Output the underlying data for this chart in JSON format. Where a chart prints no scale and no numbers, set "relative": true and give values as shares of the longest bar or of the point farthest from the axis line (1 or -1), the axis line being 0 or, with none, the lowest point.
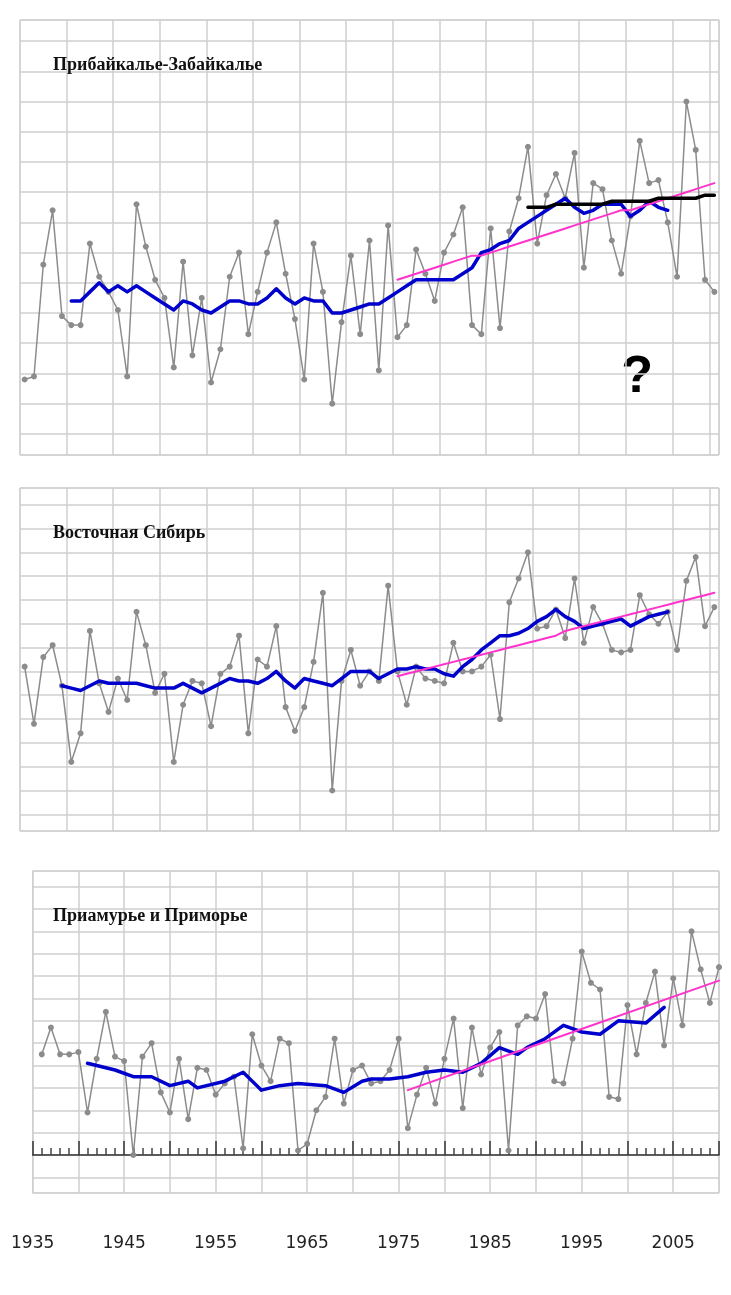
{
  "chart_data": [
    {
      "type": "line",
      "title": "Прибайкалье-Забайкалье",
      "relative": true,
      "grid": true,
      "tick_labels": false,
      "marker": "circle",
      "annotations": [
        "?"
      ],
      "categories": [
        null,
        null,
        null,
        null,
        null,
        null,
        null,
        null,
        null,
        null,
        null,
        null,
        null,
        null,
        null,
        null,
        null,
        null,
        null,
        null,
        null,
        null,
        null,
        null,
        null,
        null,
        null,
        null,
        null,
        null,
        null,
        null,
        null,
        null,
        null,
        null,
        null,
        null,
        null,
        null,
        null,
        null,
        null,
        null,
        null,
        null,
        null,
        null,
        null,
        null,
        null,
        null,
        null,
        null,
        null,
        null,
        null,
        null,
        null,
        null,
        null,
        null,
        null,
        null,
        null,
        null,
        null,
        null,
        null,
        null,
        null,
        null,
        null,
        null,
        null
      ],
      "series": [
        {
          "color": "#8c8c8c",
          "values": [
            0.08,
            0.09,
            0.46,
            0.64,
            0.29,
            0.26,
            0.26,
            0.53,
            0.42,
            0.37,
            0.31,
            0.09,
            0.66,
            0.52,
            0.41,
            0.35,
            0.12,
            0.47,
            0.16,
            0.35,
            0.07,
            0.18,
            0.42,
            0.5,
            0.23,
            0.37,
            0.5,
            0.6,
            0.43,
            0.28,
            0.08,
            0.53,
            0.37,
            0,
            0.27,
            0.49,
            0.23,
            0.54,
            0.11,
            0.59,
            0.22,
            0.26,
            0.51,
            0.43,
            0.34,
            0.5,
            0.56,
            0.65,
            0.26,
            0.23,
            0.58,
            0.25,
            0.57,
            0.68,
            0.85,
            0.53,
            0.69,
            0.76,
            0.68,
            0.83,
            0.45,
            0.73,
            0.71,
            0.54,
            0.43,
            0.62,
            0.87,
            0.73,
            0.74,
            0.6,
            0.42,
            1,
            0.84,
            0.41,
            0.37
          ]
        },
        {
          "color": "#0000cc",
          "marker": "none",
          "values": [
            null,
            null,
            null,
            null,
            null,
            0.34,
            0.34,
            0.37,
            0.4,
            0.37,
            0.39,
            0.37,
            0.39,
            0.37,
            0.35,
            0.33,
            0.31,
            0.34,
            0.33,
            0.31,
            0.3,
            0.32,
            0.34,
            0.34,
            0.33,
            0.33,
            0.35,
            0.38,
            0.35,
            0.33,
            0.35,
            0.34,
            0.34,
            0.3,
            0.3,
            0.31,
            0.32,
            0.33,
            0.33,
            0.35,
            0.37,
            0.39,
            0.41,
            0.41,
            0.41,
            0.41,
            0.41,
            0.43,
            0.45,
            0.5,
            0.51,
            0.53,
            0.54,
            0.58,
            0.6,
            0.62,
            0.64,
            0.66,
            0.68,
            0.65,
            0.63,
            0.64,
            0.66,
            0.66,
            0.66,
            0.62,
            0.64,
            0.67,
            0.65,
            0.64,
            null,
            null,
            null,
            null,
            null
          ]
        },
        {
          "color": "#ff33cc",
          "marker": "none",
          "values": [
            null,
            null,
            null,
            null,
            null,
            null,
            null,
            null,
            null,
            null,
            null,
            null,
            null,
            null,
            null,
            null,
            null,
            null,
            null,
            null,
            null,
            null,
            null,
            null,
            null,
            null,
            null,
            null,
            null,
            null,
            null,
            null,
            null,
            null,
            null,
            null,
            null,
            null,
            null,
            null,
            0.41,
            0.42,
            0.43,
            0.44,
            0.45,
            0.46,
            0.47,
            0.48,
            0.49,
            0.49,
            0.5,
            0.51,
            0.52,
            0.53,
            0.54,
            0.55,
            0.56,
            0.57,
            0.58,
            0.59,
            0.6,
            0.61,
            0.62,
            0.63,
            0.64,
            0.64,
            0.65,
            0.66,
            0.67,
            0.68,
            0.69,
            0.7,
            0.71,
            0.72,
            0.73
          ]
        },
        {
          "color": "#000000",
          "marker": "none",
          "values": [
            null,
            null,
            null,
            null,
            null,
            null,
            null,
            null,
            null,
            null,
            null,
            null,
            null,
            null,
            null,
            null,
            null,
            null,
            null,
            null,
            null,
            null,
            null,
            null,
            null,
            null,
            null,
            null,
            null,
            null,
            null,
            null,
            null,
            null,
            null,
            null,
            null,
            null,
            null,
            null,
            null,
            null,
            null,
            null,
            null,
            null,
            null,
            null,
            null,
            null,
            null,
            null,
            null,
            null,
            0.65,
            0.65,
            0.65,
            0.66,
            0.66,
            0.66,
            0.66,
            0.66,
            0.66,
            0.67,
            0.67,
            0.67,
            0.67,
            0.67,
            0.68,
            0.68,
            0.68,
            0.68,
            0.68,
            0.69,
            0.69
          ]
        }
      ]
    },
    {
      "type": "line",
      "title": "Восточная Сибирь",
      "relative": true,
      "grid": true,
      "tick_labels": false,
      "marker": "circle",
      "categories": [
        null,
        null,
        null,
        null,
        null,
        null,
        null,
        null,
        null,
        null,
        null,
        null,
        null,
        null,
        null,
        null,
        null,
        null,
        null,
        null,
        null,
        null,
        null,
        null,
        null,
        null,
        null,
        null,
        null,
        null,
        null,
        null,
        null,
        null,
        null,
        null,
        null,
        null,
        null,
        null,
        null,
        null,
        null,
        null,
        null,
        null,
        null,
        null,
        null,
        null,
        null,
        null,
        null,
        null,
        null,
        null,
        null,
        null,
        null,
        null,
        null,
        null,
        null,
        null,
        null,
        null,
        null,
        null,
        null,
        null,
        null,
        null,
        null,
        null,
        null
      ],
      "series": [
        {
          "color": "#8c8c8c",
          "values": [
            0.52,
            0.28,
            0.56,
            0.61,
            0.44,
            0.12,
            0.24,
            0.67,
            0.45,
            0.33,
            0.47,
            0.38,
            0.75,
            0.61,
            0.41,
            0.49,
            0.12,
            0.36,
            0.46,
            0.45,
            0.27,
            0.49,
            0.52,
            0.65,
            0.24,
            0.55,
            0.52,
            0.69,
            0.35,
            0.25,
            0.35,
            0.54,
            0.83,
            0,
            0.46,
            0.59,
            0.44,
            0.5,
            0.46,
            0.86,
            0.5,
            0.36,
            0.52,
            0.47,
            0.46,
            0.45,
            0.62,
            0.5,
            0.5,
            0.52,
            0.57,
            0.3,
            0.79,
            0.89,
            1,
            0.68,
            0.69,
            0.76,
            0.64,
            0.89,
            0.62,
            0.77,
            0.7,
            0.59,
            0.58,
            0.59,
            0.82,
            0.74,
            0.7,
            0.75,
            0.59,
            0.88,
            0.98,
            0.69,
            0.77
          ]
        },
        {
          "color": "#0000cc",
          "marker": "none",
          "values": [
            null,
            null,
            null,
            null,
            0.44,
            0.43,
            0.42,
            0.44,
            0.46,
            0.45,
            0.45,
            0.45,
            0.45,
            0.44,
            0.43,
            0.43,
            0.43,
            0.45,
            0.43,
            0.41,
            0.43,
            0.45,
            0.47,
            0.46,
            0.46,
            0.45,
            0.47,
            0.5,
            0.46,
            0.43,
            0.47,
            0.46,
            0.45,
            0.44,
            0.47,
            0.5,
            0.5,
            0.5,
            0.47,
            0.49,
            0.51,
            0.51,
            0.52,
            0.51,
            0.51,
            0.49,
            0.48,
            0.52,
            0.55,
            0.59,
            0.62,
            0.65,
            0.65,
            0.66,
            0.68,
            0.71,
            0.73,
            0.76,
            0.73,
            0.71,
            0.68,
            0.69,
            0.7,
            0.71,
            0.72,
            0.69,
            0.71,
            0.73,
            0.74,
            0.75,
            null,
            null,
            null,
            null,
            null
          ]
        },
        {
          "color": "#ff33cc",
          "marker": "none",
          "values": [
            null,
            null,
            null,
            null,
            null,
            null,
            null,
            null,
            null,
            null,
            null,
            null,
            null,
            null,
            null,
            null,
            null,
            null,
            null,
            null,
            null,
            null,
            null,
            null,
            null,
            null,
            null,
            null,
            null,
            null,
            null,
            null,
            null,
            null,
            null,
            null,
            null,
            null,
            null,
            null,
            0.48,
            0.49,
            0.5,
            0.51,
            0.52,
            0.53,
            0.54,
            0.55,
            0.56,
            0.57,
            0.58,
            0.59,
            0.6,
            0.61,
            0.62,
            0.63,
            0.64,
            0.65,
            0.67,
            0.68,
            0.69,
            0.7,
            0.71,
            0.72,
            0.73,
            0.74,
            0.75,
            0.76,
            0.77,
            0.78,
            0.79,
            0.8,
            0.81,
            0.82,
            0.83
          ]
        }
      ]
    },
    {
      "type": "line",
      "title": "Приамурье и Приморье",
      "relative": true,
      "grid": true,
      "tick_labels": "x",
      "marker": "circle",
      "xlim": [
        1935,
        2010
      ],
      "xticks": [
        {
          "value": 1935,
          "label": "1935"
        },
        {
          "value": 1940,
          "label": null
        },
        {
          "value": 1945,
          "label": "1945"
        },
        {
          "value": 1950,
          "label": null
        },
        {
          "value": 1955,
          "label": "1955"
        },
        {
          "value": 1960,
          "label": null
        },
        {
          "value": 1965,
          "label": "1965"
        },
        {
          "value": 1970,
          "label": null
        },
        {
          "value": 1975,
          "label": "1975"
        },
        {
          "value": 1980,
          "label": null
        },
        {
          "value": 1985,
          "label": "1985"
        },
        {
          "value": 1990,
          "label": null
        },
        {
          "value": 1995,
          "label": "1995"
        },
        {
          "value": 2000,
          "label": null
        },
        {
          "value": 2005,
          "label": "2005"
        },
        {
          "value": 2010,
          "label": null
        }
      ],
      "x": [
        1936,
        1937,
        1938,
        1939,
        1940,
        1941,
        1942,
        1943,
        1944,
        1945,
        1946,
        1947,
        1948,
        1949,
        1950,
        1951,
        1952,
        1953,
        1954,
        1955,
        1956,
        1957,
        1958,
        1959,
        1960,
        1961,
        1962,
        1963,
        1964,
        1965,
        1966,
        1967,
        1968,
        1969,
        1970,
        1971,
        1972,
        1973,
        1974,
        1975,
        1976,
        1977,
        1978,
        1979,
        1980,
        1981,
        1982,
        1983,
        1984,
        1985,
        1986,
        1987,
        1988,
        1989,
        1990,
        1991,
        1992,
        1993,
        1994,
        1995,
        1996,
        1997,
        1998,
        1999,
        2000,
        2001,
        2002,
        2003,
        2004,
        2005,
        2006,
        2007,
        2008,
        2009,
        2010
      ],
      "series": [
        {
          "color": "#8c8c8c",
          "values": [
            0.45,
            0.57,
            0.45,
            0.45,
            0.46,
            0.19,
            0.43,
            0.64,
            0.44,
            0.42,
            0,
            0.44,
            0.5,
            0.28,
            0.19,
            0.43,
            0.16,
            0.39,
            0.38,
            0.27,
            0.32,
            0.35,
            0.03,
            0.54,
            0.4,
            0.33,
            0.52,
            0.5,
            0.02,
            0.05,
            0.2,
            0.26,
            0.52,
            0.23,
            0.38,
            0.4,
            0.32,
            0.33,
            0.38,
            0.52,
            0.12,
            0.27,
            0.39,
            0.23,
            0.43,
            0.61,
            0.21,
            0.57,
            0.36,
            0.48,
            0.55,
            0.02,
            0.58,
            0.62,
            0.61,
            0.72,
            0.33,
            0.32,
            0.52,
            0.91,
            0.77,
            0.74,
            0.26,
            0.25,
            0.67,
            0.45,
            0.68,
            0.82,
            0.49,
            0.79,
            0.58,
            1,
            0.83,
            0.68,
            0.84
          ]
        },
        {
          "color": "#0000cc",
          "marker": "none",
          "x": [
            1941,
            1942,
            1944,
            1946,
            1948,
            1950,
            1952,
            1953,
            1956,
            1958,
            1960,
            1962,
            1964,
            1967,
            1969,
            1971,
            1972,
            1974,
            1976,
            1978,
            1980,
            1982,
            1984,
            1986,
            1988,
            1989,
            1991,
            1993,
            1995,
            1997,
            1999,
            2002,
            2004
          ],
          "values": [
            0.41,
            0.4,
            0.38,
            0.35,
            0.35,
            0.31,
            0.33,
            0.3,
            0.33,
            0.37,
            0.29,
            0.31,
            0.32,
            0.31,
            0.28,
            0.33,
            0.34,
            0.34,
            0.35,
            0.37,
            0.38,
            0.37,
            0.41,
            0.48,
            0.45,
            0.48,
            0.52,
            0.58,
            0.55,
            0.54,
            0.6,
            0.59,
            0.66
          ]
        },
        {
          "color": "#ff33cc",
          "marker": "none",
          "x": [
            1976,
            2010
          ],
          "values": [
            0.29,
            0.78
          ]
        }
      ]
    }
  ]
}
